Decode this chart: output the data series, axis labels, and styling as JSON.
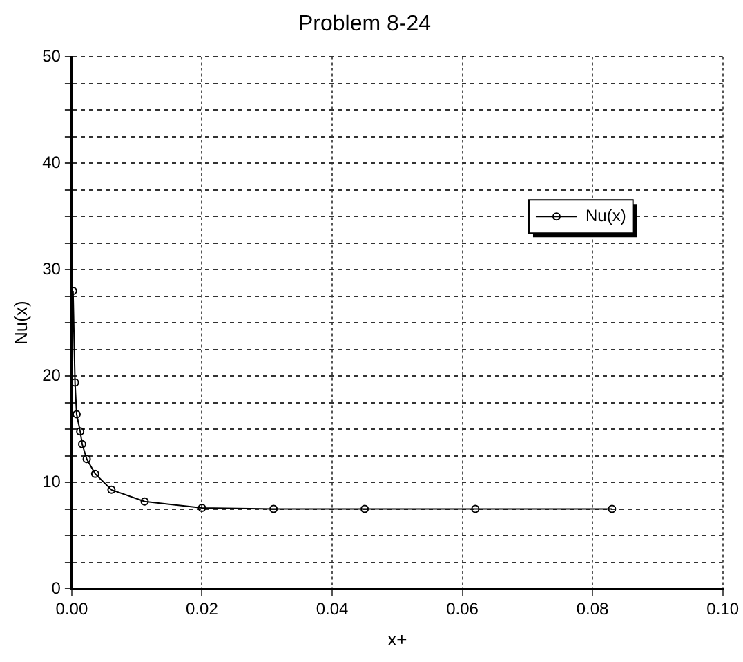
{
  "chart_data": {
    "type": "line",
    "title": "Problem 8-24",
    "xlabel": "x+",
    "ylabel": "Nu(x)",
    "x": [
      0.0002,
      0.0005,
      0.00075,
      0.0013,
      0.0016,
      0.0023,
      0.0036,
      0.0061,
      0.0112,
      0.02,
      0.031,
      0.045,
      0.062,
      0.083
    ],
    "series": [
      {
        "name": "Nu(x)",
        "color": "#000000",
        "values": [
          28.0,
          19.4,
          16.4,
          14.8,
          13.6,
          12.2,
          10.8,
          9.3,
          8.2,
          7.6,
          7.5,
          7.5,
          7.5,
          7.5
        ]
      }
    ],
    "xlim": [
      0,
      0.1
    ],
    "xticks": [
      {
        "value": 0,
        "label": "0.00"
      },
      {
        "value": 0.02,
        "label": "0.02"
      },
      {
        "value": 0.04,
        "label": "0.04"
      },
      {
        "value": 0.06,
        "label": "0.06"
      },
      {
        "value": 0.08,
        "label": "0.08"
      },
      {
        "value": 0.1,
        "label": "0.10"
      }
    ],
    "ylim": [
      0,
      50
    ],
    "yticks": [
      0,
      {
        "value": 2.5,
        "label": null
      },
      {
        "value": 5,
        "label": null
      },
      {
        "value": 7.5,
        "label": null
      },
      10,
      {
        "value": 12.5,
        "label": null
      },
      {
        "value": 15,
        "label": null
      },
      {
        "value": 17.5,
        "label": null
      },
      20,
      {
        "value": 22.5,
        "label": null
      },
      {
        "value": 25,
        "label": null
      },
      {
        "value": 27.5,
        "label": null
      },
      30,
      {
        "value": 32.5,
        "label": null
      },
      {
        "value": 35,
        "label": null
      },
      {
        "value": 37.5,
        "label": null
      },
      40,
      {
        "value": 42.5,
        "label": null
      },
      {
        "value": 45,
        "label": null
      },
      {
        "value": 47.5,
        "label": null
      },
      50
    ],
    "grid": true,
    "legend": "right",
    "marker": "circle",
    "line_style": "solid"
  }
}
